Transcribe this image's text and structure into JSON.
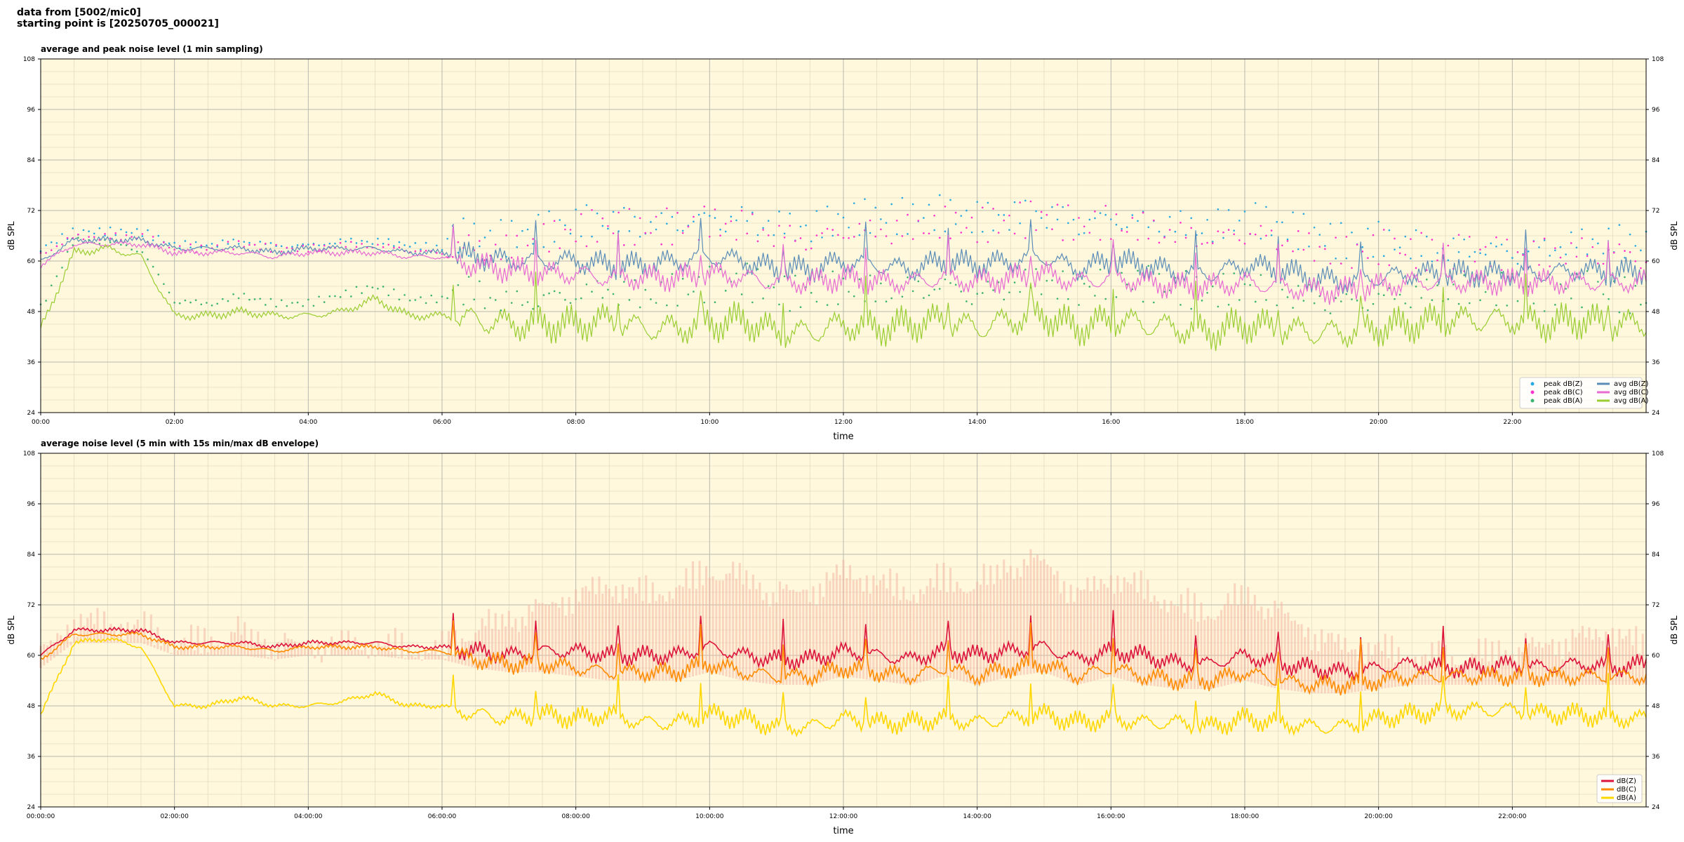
{
  "header": {
    "line1": "data from [5002/mic0]",
    "line2": "starting point is [20250705_000021]"
  },
  "colors": {
    "background": "#fff8dc",
    "peak_z": "#2aa9e0",
    "peak_c": "#ff33cc",
    "peak_a": "#3cb371",
    "avg_z": "#5b8db8",
    "avg_c": "#e76bd3",
    "avg_a": "#9acd32",
    "line_z": "#dc143c",
    "line_c": "#ff8c00",
    "line_a": "#ffd700",
    "envelope": "#f4b8a6"
  },
  "chart_data": [
    {
      "type": "line",
      "title": "average and peak noise level (1 min sampling)",
      "xlabel": "time",
      "ylabel": "dB SPL",
      "xlim": [
        0,
        24
      ],
      "ylim": [
        24,
        108
      ],
      "yticks": [
        24,
        36,
        48,
        60,
        72,
        84,
        96,
        108
      ],
      "xtick_labels": [
        "00:00",
        "02:00",
        "04:00",
        "06:00",
        "08:00",
        "10:00",
        "12:00",
        "14:00",
        "16:00",
        "18:00",
        "20:00",
        "22:00"
      ],
      "grid": true,
      "legend": "bottom-right",
      "x": [
        0,
        0.5,
        1,
        1.5,
        2,
        2.5,
        3,
        3.5,
        4,
        4.5,
        5,
        5.5,
        6,
        6.5,
        7,
        7.5,
        8,
        8.5,
        9,
        9.5,
        10,
        10.5,
        11,
        11.5,
        12,
        12.5,
        13,
        13.5,
        14,
        14.5,
        15,
        15.5,
        16,
        16.5,
        17,
        17.5,
        18,
        18.5,
        19,
        19.5,
        20,
        20.5,
        21,
        21.5,
        22,
        22.5,
        23,
        23.5,
        24
      ],
      "series": [
        {
          "name": "peak dB(Z)",
          "style": "dots",
          "values": [
            62,
            66,
            66,
            66,
            63,
            63,
            64,
            63,
            63,
            64,
            64,
            63,
            62,
            61,
            61,
            63,
            65,
            66,
            65,
            66,
            67,
            67,
            65,
            64,
            66,
            66,
            66,
            67,
            66,
            67,
            68,
            66,
            67,
            66,
            65,
            64,
            66,
            64,
            62,
            60,
            61,
            60,
            59,
            60,
            59,
            60,
            61,
            61,
            60
          ]
        },
        {
          "name": "peak dB(C)",
          "style": "dots",
          "values": [
            61,
            65,
            65,
            65,
            62,
            62,
            63,
            62,
            62,
            63,
            63,
            62,
            61,
            60,
            59,
            61,
            63,
            64,
            63,
            64,
            65,
            65,
            63,
            62,
            64,
            64,
            64,
            65,
            64,
            65,
            66,
            64,
            65,
            64,
            63,
            62,
            64,
            62,
            60,
            58,
            59,
            58,
            57,
            58,
            57,
            58,
            59,
            59,
            58
          ]
        },
        {
          "name": "peak dB(A)",
          "style": "dots",
          "values": [
            48,
            64,
            64,
            62,
            50,
            49,
            51,
            49,
            49,
            51,
            53,
            50,
            50,
            49,
            47,
            48,
            49,
            50,
            48,
            49,
            50,
            51,
            48,
            48,
            50,
            49,
            50,
            51,
            49,
            51,
            52,
            49,
            51,
            50,
            49,
            48,
            50,
            49,
            48,
            47,
            48,
            49,
            49,
            49,
            49,
            48,
            49,
            48,
            47
          ]
        },
        {
          "name": "avg dB(Z)",
          "style": "line",
          "values": [
            60,
            65,
            65,
            65,
            63,
            63,
            63,
            62,
            63,
            63,
            63,
            62,
            62,
            61,
            60,
            60,
            60,
            59,
            59,
            60,
            61,
            60,
            58,
            58,
            60,
            59,
            58,
            60,
            59,
            60,
            61,
            58,
            60,
            59,
            57,
            57,
            59,
            58,
            56,
            55,
            56,
            57,
            57,
            57,
            57,
            57,
            58,
            57,
            58
          ]
        },
        {
          "name": "avg dB(C)",
          "style": "line",
          "values": [
            59,
            64,
            64,
            64,
            62,
            62,
            62,
            61,
            62,
            62,
            62,
            61,
            61,
            59,
            58,
            57,
            57,
            56,
            56,
            56,
            57,
            56,
            55,
            55,
            56,
            55,
            55,
            56,
            55,
            56,
            57,
            55,
            56,
            55,
            54,
            54,
            55,
            54,
            53,
            53,
            54,
            55,
            55,
            55,
            55,
            55,
            55,
            55,
            55
          ]
        },
        {
          "name": "avg dB(A)",
          "style": "line",
          "values": [
            44,
            62,
            63,
            61,
            47,
            47,
            48,
            47,
            47,
            48,
            51,
            47,
            47,
            46,
            45,
            45,
            45,
            46,
            44,
            44,
            45,
            46,
            43,
            43,
            45,
            44,
            45,
            46,
            44,
            46,
            47,
            44,
            46,
            45,
            44,
            43,
            45,
            44,
            43,
            43,
            44,
            45,
            46,
            46,
            46,
            45,
            46,
            45,
            45
          ]
        }
      ]
    },
    {
      "type": "line",
      "title": "average noise level (5 min with 15s min/max dB envelope)",
      "xlabel": "time",
      "ylabel": "dB SPL",
      "xlim": [
        0,
        24
      ],
      "ylim": [
        24,
        108
      ],
      "yticks": [
        24,
        36,
        48,
        60,
        72,
        84,
        96,
        108
      ],
      "xtick_labels": [
        "00:00:00",
        "02:00:00",
        "04:00:00",
        "06:00:00",
        "08:00:00",
        "10:00:00",
        "12:00:00",
        "14:00:00",
        "16:00:00",
        "18:00:00",
        "20:00:00",
        "22:00:00"
      ],
      "grid": true,
      "legend": "bottom-right",
      "x": [
        0,
        0.5,
        1,
        1.5,
        2,
        2.5,
        3,
        3.5,
        4,
        4.5,
        5,
        5.5,
        6,
        6.5,
        7,
        7.5,
        8,
        8.5,
        9,
        9.5,
        10,
        10.5,
        11,
        11.5,
        12,
        12.5,
        13,
        13.5,
        14,
        14.5,
        15,
        15.5,
        16,
        16.5,
        17,
        17.5,
        18,
        18.5,
        19,
        19.5,
        20,
        20.5,
        21,
        21.5,
        22,
        22.5,
        23,
        23.5,
        24
      ],
      "series": [
        {
          "name": "dB(Z)",
          "values": [
            60,
            66,
            66,
            66,
            63,
            63,
            63,
            62,
            63,
            63,
            63,
            62,
            62,
            61,
            60,
            61,
            61,
            60,
            60,
            60,
            62,
            60,
            59,
            59,
            61,
            60,
            59,
            61,
            60,
            61,
            62,
            59,
            61,
            60,
            58,
            58,
            60,
            58,
            57,
            56,
            57,
            58,
            57,
            57,
            58,
            57,
            58,
            57,
            58
          ]
        },
        {
          "name": "dB(C)",
          "values": [
            59,
            65,
            65,
            65,
            62,
            62,
            62,
            61,
            62,
            62,
            62,
            61,
            61,
            59,
            58,
            58,
            57,
            56,
            56,
            56,
            58,
            56,
            55,
            55,
            57,
            56,
            55,
            57,
            55,
            57,
            58,
            55,
            57,
            55,
            54,
            54,
            56,
            54,
            53,
            53,
            54,
            55,
            55,
            55,
            55,
            55,
            55,
            55,
            55
          ]
        },
        {
          "name": "dB(A)",
          "values": [
            46,
            63,
            64,
            62,
            48,
            48,
            50,
            48,
            48,
            49,
            51,
            48,
            48,
            46,
            45,
            46,
            45,
            46,
            44,
            44,
            46,
            45,
            43,
            43,
            45,
            44,
            44,
            45,
            44,
            45,
            46,
            44,
            45,
            44,
            44,
            43,
            45,
            44,
            43,
            43,
            45,
            46,
            47,
            47,
            47,
            46,
            46,
            45,
            45
          ]
        }
      ],
      "envelope_max": [
        62,
        70,
        70,
        69,
        65,
        65,
        67,
        64,
        64,
        65,
        65,
        64,
        63,
        68,
        70,
        73,
        76,
        79,
        77,
        78,
        82,
        80,
        76,
        77,
        82,
        80,
        77,
        80,
        78,
        83,
        84,
        76,
        81,
        78,
        74,
        72,
        76,
        72,
        67,
        64,
        64,
        62,
        61,
        62,
        63,
        64,
        66,
        68,
        64
      ]
    }
  ]
}
